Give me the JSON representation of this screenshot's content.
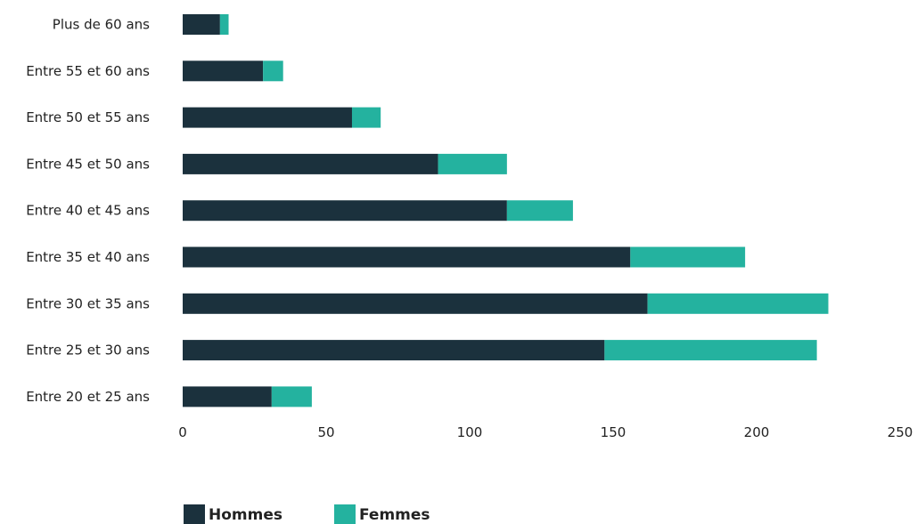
{
  "chart_data": {
    "type": "bar",
    "orientation": "horizontal",
    "stacked": true,
    "categories": [
      "Plus de 60 ans",
      "Entre 55 et 60 ans",
      "Entre 50 et 55 ans",
      "Entre 45 et 50 ans",
      "Entre 40 et 45 ans",
      "Entre 35 et 40 ans",
      "Entre 30 et 35 ans",
      "Entre 25 et 30 ans",
      "Entre 20 et 25 ans"
    ],
    "series": [
      {
        "name": "Hommes",
        "color": "#1b313d",
        "values": [
          13,
          28,
          59,
          89,
          113,
          156,
          162,
          147,
          31
        ]
      },
      {
        "name": "Femmes",
        "color": "#24b29f",
        "values": [
          3,
          7,
          10,
          24,
          23,
          40,
          63,
          74,
          14
        ]
      }
    ],
    "xlim": [
      0,
      250
    ],
    "xticks": [
      "0",
      "50",
      "100",
      "150",
      "200",
      "250"
    ],
    "grid": false,
    "legend_position": "bottom-left"
  }
}
